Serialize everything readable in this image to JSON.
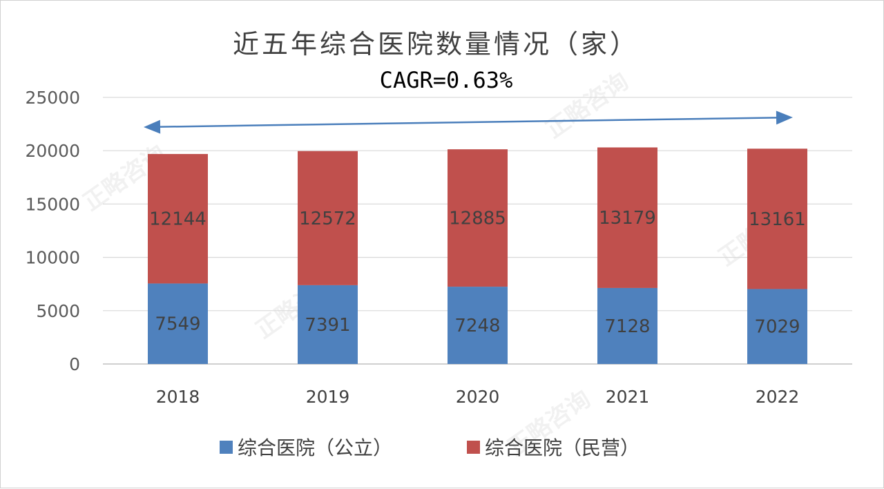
{
  "chart_data": {
    "type": "bar",
    "stacked": true,
    "title": "近五年综合医院数量情况（家）",
    "subtitle": "CAGR=0.63%",
    "categories": [
      "2018",
      "2019",
      "2020",
      "2021",
      "2022"
    ],
    "series": [
      {
        "name": "综合医院（公立）",
        "color": "#4f81bd",
        "values": [
          7549,
          7391,
          7248,
          7128,
          7029
        ]
      },
      {
        "name": "综合医院（民营）",
        "color": "#c0504d",
        "values": [
          12144,
          12572,
          12885,
          13179,
          13161
        ]
      }
    ],
    "ylim": [
      0,
      25000
    ],
    "yticks": [
      "0",
      "5000",
      "10000",
      "15000",
      "20000",
      "25000"
    ],
    "grid": true,
    "legend": "bottom",
    "annotation": {
      "type": "double-arrow",
      "color": "#4a7ebb"
    }
  },
  "watermark": "正略咨询"
}
